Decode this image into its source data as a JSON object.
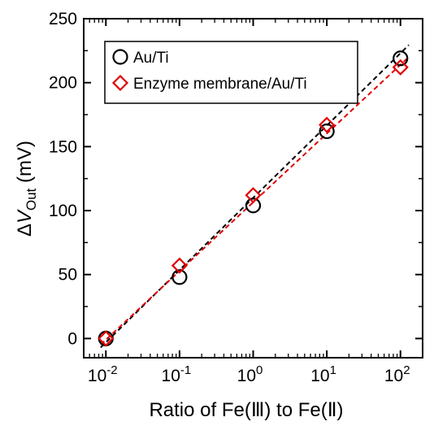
{
  "chart_data": {
    "type": "scatter",
    "xscale": "log",
    "x": [
      0.01,
      0.1,
      1,
      10,
      100
    ],
    "xlabel": "Ratio of Fe(Ⅲ) to Fe(Ⅱ)",
    "ylabel": {
      "prefix": "ΔV",
      "subscript": "Out",
      "suffix": " (mV)"
    },
    "xlim": [
      0.005,
      200
    ],
    "ylim": [
      -15,
      250
    ],
    "xticks": [
      {
        "value": 0.01,
        "base": "10",
        "exp": "-2"
      },
      {
        "value": 0.1,
        "base": "10",
        "exp": "-1"
      },
      {
        "value": 1,
        "base": "10",
        "exp": "0"
      },
      {
        "value": 10,
        "base": "10",
        "exp": "1"
      },
      {
        "value": 100,
        "base": "10",
        "exp": "2"
      }
    ],
    "yticks": [
      0,
      50,
      100,
      150,
      200,
      250
    ],
    "legend_position": "top-left",
    "series": [
      {
        "name": "Au/Ti",
        "marker": "circle",
        "color": "#000000",
        "values": [
          0,
          48,
          104,
          162,
          219
        ],
        "fit_line": [
          -3,
          223
        ]
      },
      {
        "name": "Enzyme membrane/Au/Ti",
        "marker": "diamond",
        "color": "#e00000",
        "values": [
          0,
          57,
          112,
          167,
          212
        ],
        "fit_line": [
          -1,
          214
        ]
      }
    ]
  }
}
